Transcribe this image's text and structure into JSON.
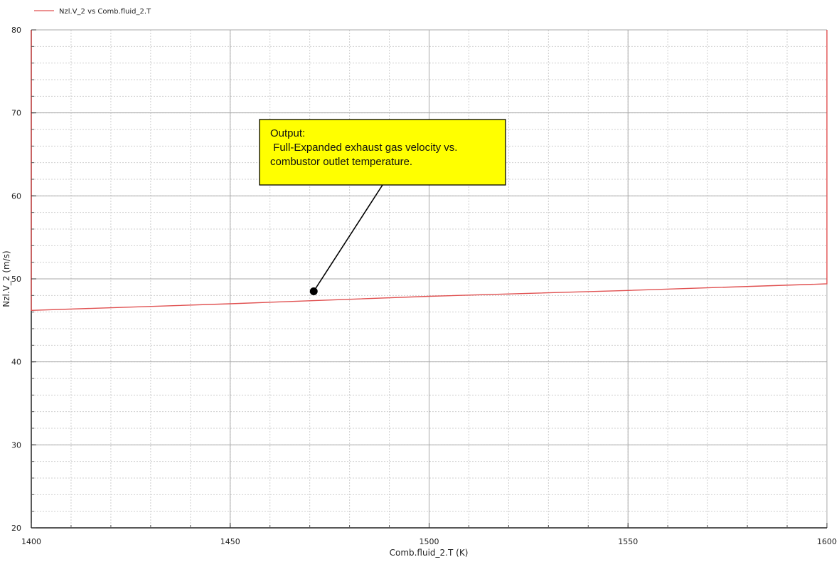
{
  "chart_data": {
    "type": "line",
    "title": "",
    "legend": {
      "entries": [
        "Nzl.V_2 vs Comb.fluid_2.T"
      ],
      "placement": "top-left"
    },
    "xlabel": "Comb.fluid_2.T (K)",
    "ylabel": "Nzl.V_2 (m/s)",
    "xlim": [
      1400,
      1600
    ],
    "ylim": [
      20,
      80
    ],
    "x_ticks": [
      "1400",
      "1450",
      "1500",
      "1550",
      "1600"
    ],
    "y_ticks": [
      "20",
      "30",
      "40",
      "50",
      "60",
      "70",
      "80"
    ],
    "grid": true,
    "series": [
      {
        "name": "Nzl.V_2 vs Comb.fluid_2.T",
        "color": "#e05050",
        "x": [
          1400,
          1400,
          1400,
          1450,
          1500,
          1550,
          1600,
          1600,
          1600
        ],
        "y": [
          80,
          70,
          46.2,
          47.0,
          47.9,
          48.6,
          49.4,
          70,
          80
        ]
      }
    ],
    "annotation": {
      "lines": [
        "Output:",
        " Full-Expanded exhaust gas velocity vs.",
        "combustor outlet temperature."
      ],
      "target": {
        "x": 1471,
        "y": 48.5
      },
      "fill": "#ffff00"
    }
  }
}
